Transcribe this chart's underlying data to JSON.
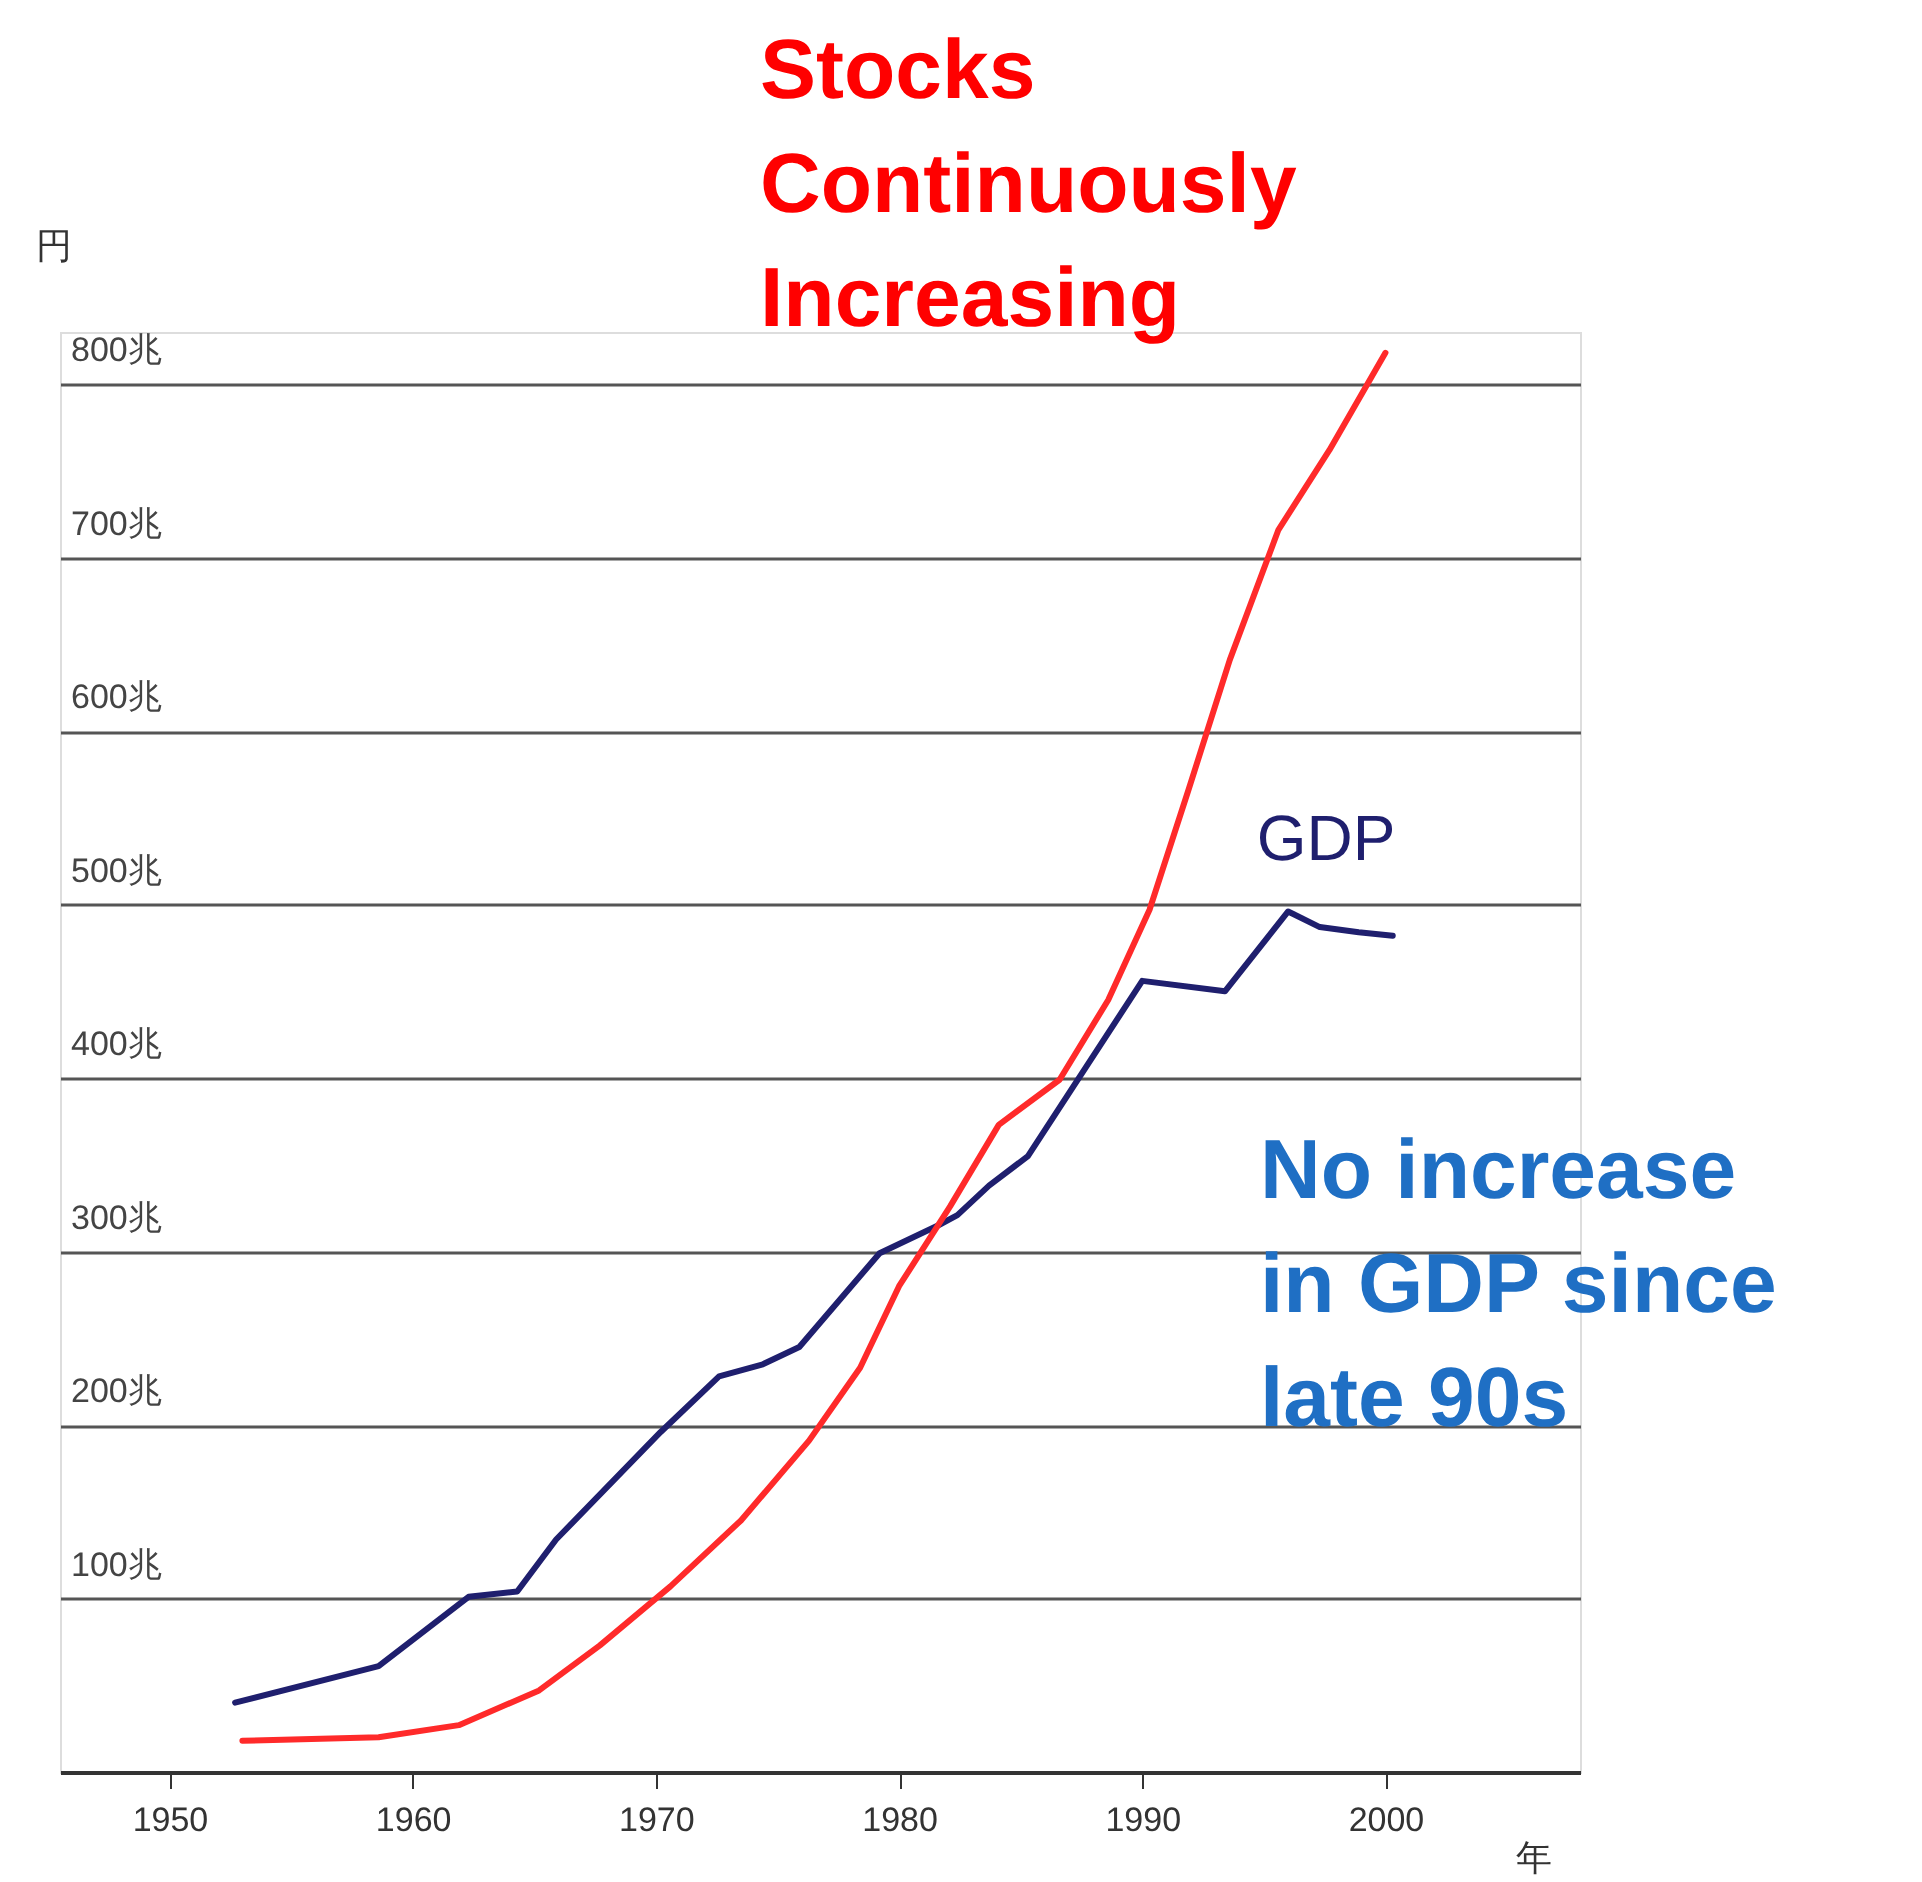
{
  "chart_data": {
    "type": "line",
    "ylabel": "円",
    "xlabel": "年",
    "annotations": [
      "Stocks\nContinuously\nIncreasing",
      "No increase\nin GDP since\nlate 90s"
    ],
    "xlim": [
      1945.5,
      2008
    ],
    "xticks": [
      1950,
      1960,
      1970,
      1980,
      1990,
      2000
    ],
    "ylim": [
      0,
      830
    ],
    "yticks": [
      {
        "value": 100,
        "label": "100兆"
      },
      {
        "value": 200,
        "label": "200兆"
      },
      {
        "value": 300,
        "label": "300兆"
      },
      {
        "value": 400,
        "label": "400兆"
      },
      {
        "value": 500,
        "label": "500兆"
      },
      {
        "value": 600,
        "label": "600兆"
      },
      {
        "value": 700,
        "label": "700兆"
      },
      {
        "value": 800,
        "label": "800兆"
      }
    ],
    "grid": "y",
    "marker": "none",
    "line_style": "solid",
    "series": [
      {
        "name": "GDP",
        "color": "#1f1f6e",
        "x": [
          1952.7,
          1958.6,
          1962.3,
          1964.3,
          1965.9,
          1970.2,
          1972.6,
          1974.4,
          1975.9,
          1979.2,
          1981.6,
          1982.4,
          1983.7,
          1985.3,
          1990.0,
          1993.4,
          1996.0,
          1997.3,
          1998.9,
          2000.3
        ],
        "values": [
          40,
          61,
          101,
          104,
          134,
          196,
          228,
          235,
          245,
          299,
          315,
          321,
          338,
          355,
          456,
          450,
          496,
          487,
          484,
          482
        ]
      },
      {
        "color": "#ff2a2a",
        "x": [
          1953.0,
          1958.6,
          1961.9,
          1965.2,
          1967.7,
          1970.6,
          1973.5,
          1976.3,
          1978.4,
          1980.0,
          1982.1,
          1984.1,
          1986.6,
          1988.6,
          1990.3,
          1991.9,
          1993.6,
          1995.6,
          1997.7,
          2000.0
        ],
        "values": [
          18,
          20,
          27,
          47,
          73,
          107,
          145,
          191,
          233,
          280,
          326,
          373,
          399,
          445,
          497,
          566,
          641,
          716,
          762,
          818
        ]
      }
    ]
  }
}
